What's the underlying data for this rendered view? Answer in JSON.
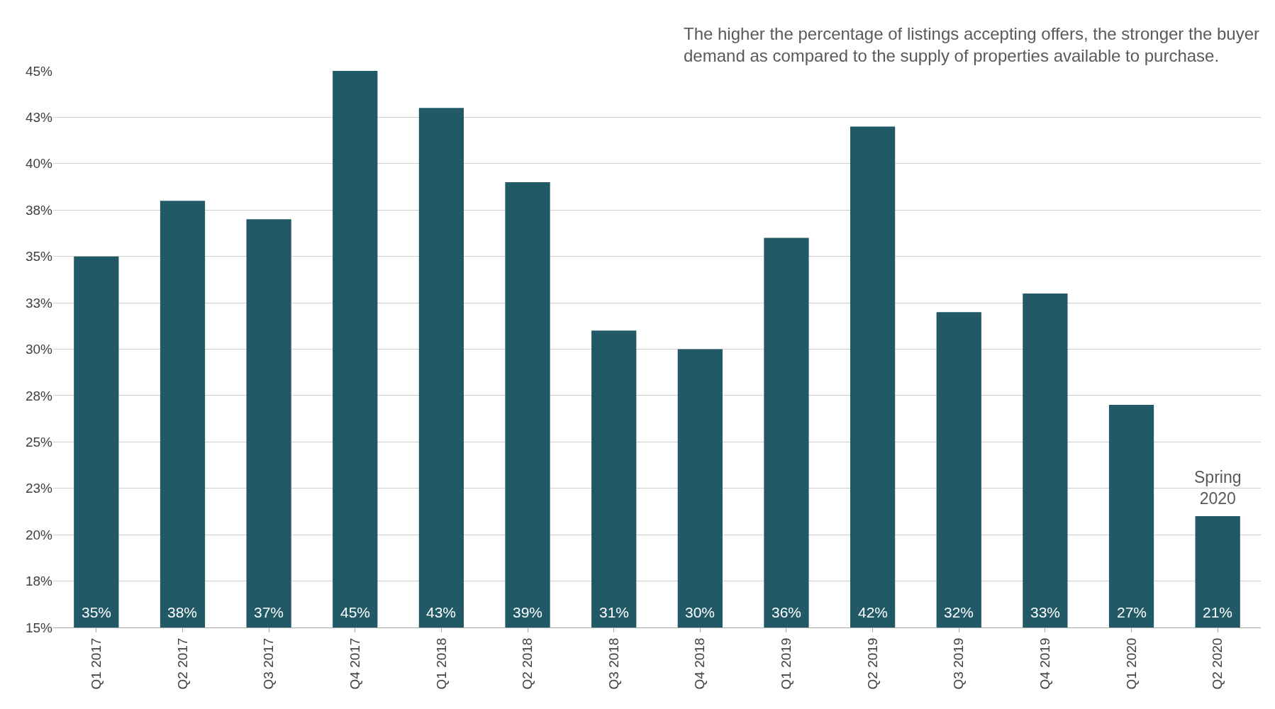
{
  "chart_data": {
    "type": "bar",
    "categories": [
      "Q1 2017",
      "Q2 2017",
      "Q3 2017",
      "Q4 2017",
      "Q1 2018",
      "Q2 2018",
      "Q3 2018",
      "Q4 2018",
      "Q1 2019",
      "Q2 2019",
      "Q3 2019",
      "Q4 2019",
      "Q1 2020",
      "Q2 2020"
    ],
    "values": [
      35,
      38,
      37,
      45,
      43,
      39,
      31,
      30,
      36,
      42,
      32,
      33,
      27,
      21
    ],
    "value_labels": [
      "35%",
      "38%",
      "37%",
      "45%",
      "43%",
      "39%",
      "31%",
      "30%",
      "36%",
      "42%",
      "32%",
      "33%",
      "27%",
      "21%"
    ],
    "color": "#215967",
    "ylim": [
      15,
      45
    ],
    "yticks": [
      {
        "value": 15,
        "label": "15%"
      },
      {
        "value": 17.5,
        "label": "18%"
      },
      {
        "value": 20,
        "label": "20%"
      },
      {
        "value": 22.5,
        "label": "23%"
      },
      {
        "value": 25,
        "label": "25%"
      },
      {
        "value": 27.5,
        "label": "28%"
      },
      {
        "value": 30,
        "label": "30%"
      },
      {
        "value": 32.5,
        "label": "33%"
      },
      {
        "value": 35,
        "label": "35%"
      },
      {
        "value": 37.5,
        "label": "38%"
      },
      {
        "value": 40,
        "label": "40%"
      },
      {
        "value": 42.5,
        "label": "43%"
      },
      {
        "value": 45,
        "label": "45%"
      }
    ],
    "grid": "y",
    "annotations": [
      "The higher the percentage of listings accepting offers, the stronger the buyer demand as compared to the supply of properties available to purchase.",
      {
        "text": "Spring 2020",
        "x": "Q2 2020",
        "y": 21
      }
    ]
  }
}
